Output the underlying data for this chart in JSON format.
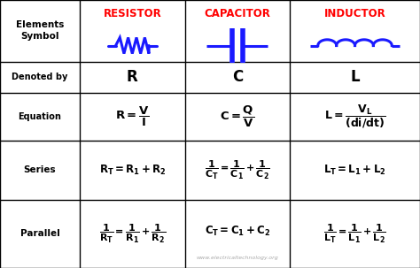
{
  "bg_color": "#ffffff",
  "header_color": "#ff0000",
  "text_color": "#000000",
  "blue_color": "#1a1aff",
  "grid_color": "#000000",
  "watermark": "www.electricaltechnology.org",
  "header_texts": [
    "RESISTOR",
    "CAPACITOR",
    "INDUCTOR"
  ],
  "row_labels": [
    "Elements\nSymbol",
    "Denoted by",
    "Equation",
    "Series",
    "Parallel"
  ],
  "denoted": [
    "R",
    "C",
    "L"
  ],
  "cols": [
    0.0,
    0.19,
    0.44,
    0.69,
    1.0
  ],
  "rows": [
    1.0,
    0.77,
    0.655,
    0.475,
    0.255,
    0.0
  ]
}
